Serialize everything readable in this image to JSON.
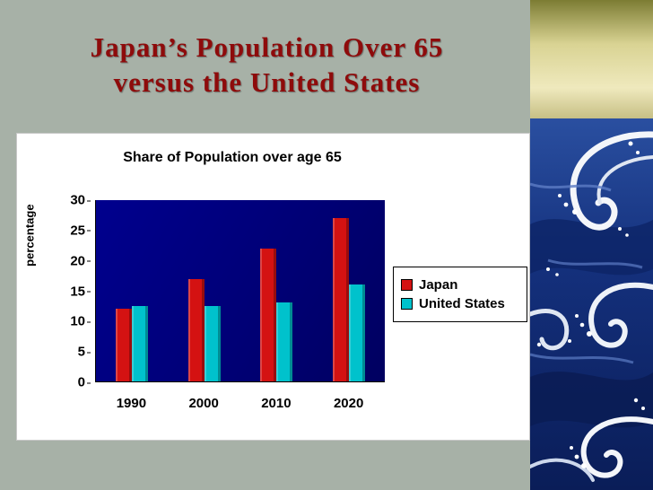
{
  "slide": {
    "title_line1": "Japan’s Population Over 65",
    "title_line2": "versus the United States"
  },
  "chart_data": {
    "type": "bar",
    "title": "Share of Population over age 65",
    "xlabel": "",
    "ylabel": "percentage",
    "categories": [
      "1990",
      "2000",
      "2010",
      "2020"
    ],
    "series": [
      {
        "name": "Japan",
        "color": "#d41212",
        "values": [
          12,
          17,
          22,
          27
        ]
      },
      {
        "name": "United States",
        "color": "#00c2cc",
        "values": [
          12.5,
          12.5,
          13,
          16
        ]
      }
    ],
    "ylim": [
      0,
      30
    ],
    "yticks": [
      0,
      5,
      10,
      15,
      20,
      25,
      30
    ],
    "grid": false,
    "legend_position": "right",
    "plot_background": "#000080"
  },
  "art": {
    "description": "japanese-wave-print"
  }
}
